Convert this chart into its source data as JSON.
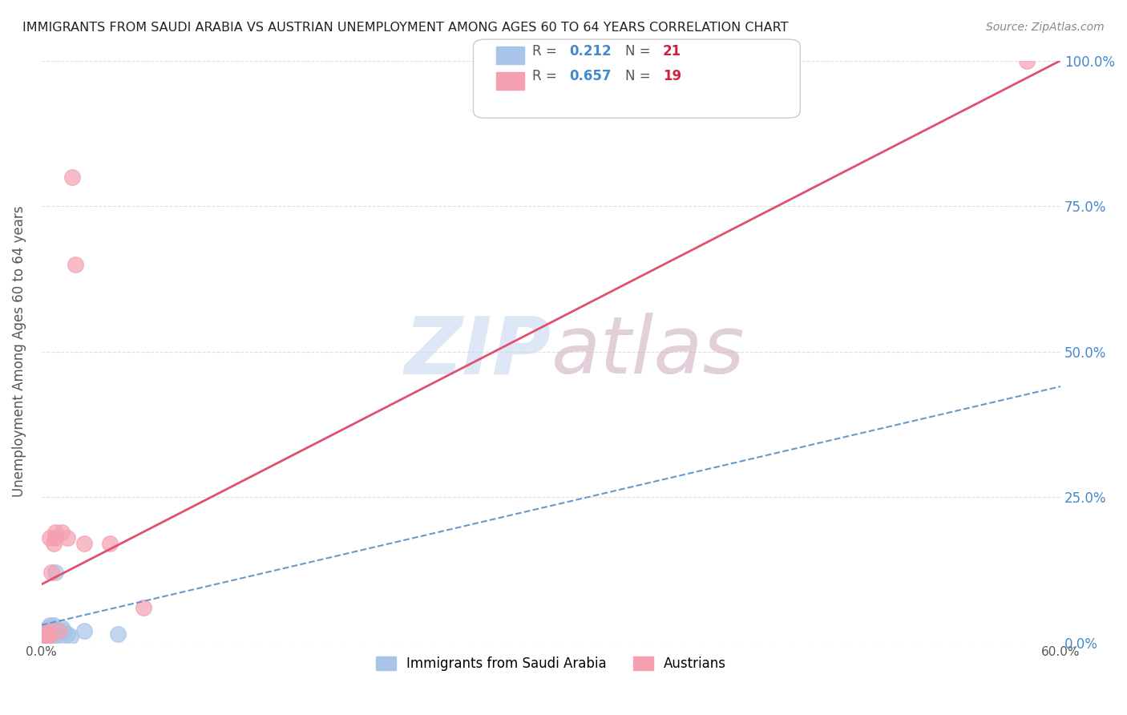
{
  "title": "IMMIGRANTS FROM SAUDI ARABIA VS AUSTRIAN UNEMPLOYMENT AMONG AGES 60 TO 64 YEARS CORRELATION CHART",
  "source": "Source: ZipAtlas.com",
  "ylabel": "Unemployment Among Ages 60 to 64 years",
  "x_ticks": [
    0.0,
    0.1,
    0.2,
    0.3,
    0.4,
    0.5,
    0.6
  ],
  "x_ticklabels": [
    "0.0%",
    "",
    "",
    "",
    "",
    "",
    "60.0%"
  ],
  "y_ticks_right": [
    0.0,
    0.25,
    0.5,
    0.75,
    1.0
  ],
  "y_ticklabels_right": [
    "0.0%",
    "25.0%",
    "50.0%",
    "75.0%",
    "100.0%"
  ],
  "xlim": [
    0.0,
    0.6
  ],
  "ylim": [
    0.0,
    1.0
  ],
  "legend_v1": "0.212",
  "legend_nv1": "21",
  "legend_v2": "0.657",
  "legend_nv2": "19",
  "blue_color": "#a8c4e8",
  "pink_color": "#f4a0b0",
  "blue_line_color": "#6699cc",
  "pink_line_color": "#e05070",
  "r_color": "#4488cc",
  "n_color": "#cc2244",
  "watermark_zip_color": "#c8d8f0",
  "watermark_atlas_color": "#d0b0c0",
  "blue_scatter_x": [
    0.002,
    0.003,
    0.003,
    0.004,
    0.004,
    0.005,
    0.005,
    0.006,
    0.006,
    0.007,
    0.007,
    0.008,
    0.009,
    0.01,
    0.011,
    0.012,
    0.013,
    0.015,
    0.017,
    0.025,
    0.045
  ],
  "blue_scatter_y": [
    0.01,
    0.02,
    0.015,
    0.01,
    0.025,
    0.03,
    0.02,
    0.015,
    0.01,
    0.03,
    0.025,
    0.12,
    0.02,
    0.015,
    0.01,
    0.025,
    0.02,
    0.015,
    0.01,
    0.02,
    0.015
  ],
  "pink_scatter_x": [
    0.002,
    0.003,
    0.003,
    0.004,
    0.004,
    0.005,
    0.006,
    0.007,
    0.008,
    0.008,
    0.01,
    0.012,
    0.015,
    0.018,
    0.02,
    0.025,
    0.04,
    0.06,
    0.58
  ],
  "pink_scatter_y": [
    0.01,
    0.005,
    0.015,
    0.02,
    0.01,
    0.18,
    0.12,
    0.17,
    0.18,
    0.19,
    0.02,
    0.19,
    0.18,
    0.8,
    0.65,
    0.17,
    0.17,
    0.06,
    1.0
  ],
  "blue_trend_x": [
    0.0,
    0.6
  ],
  "blue_trend_y": [
    0.03,
    0.44
  ],
  "pink_trend_x": [
    0.0,
    0.6
  ],
  "pink_trend_y": [
    0.1,
    1.0
  ],
  "grid_color": "#e0e0e0",
  "bg_color": "#ffffff",
  "label_blue": "Immigrants from Saudi Arabia",
  "label_pink": "Austrians"
}
